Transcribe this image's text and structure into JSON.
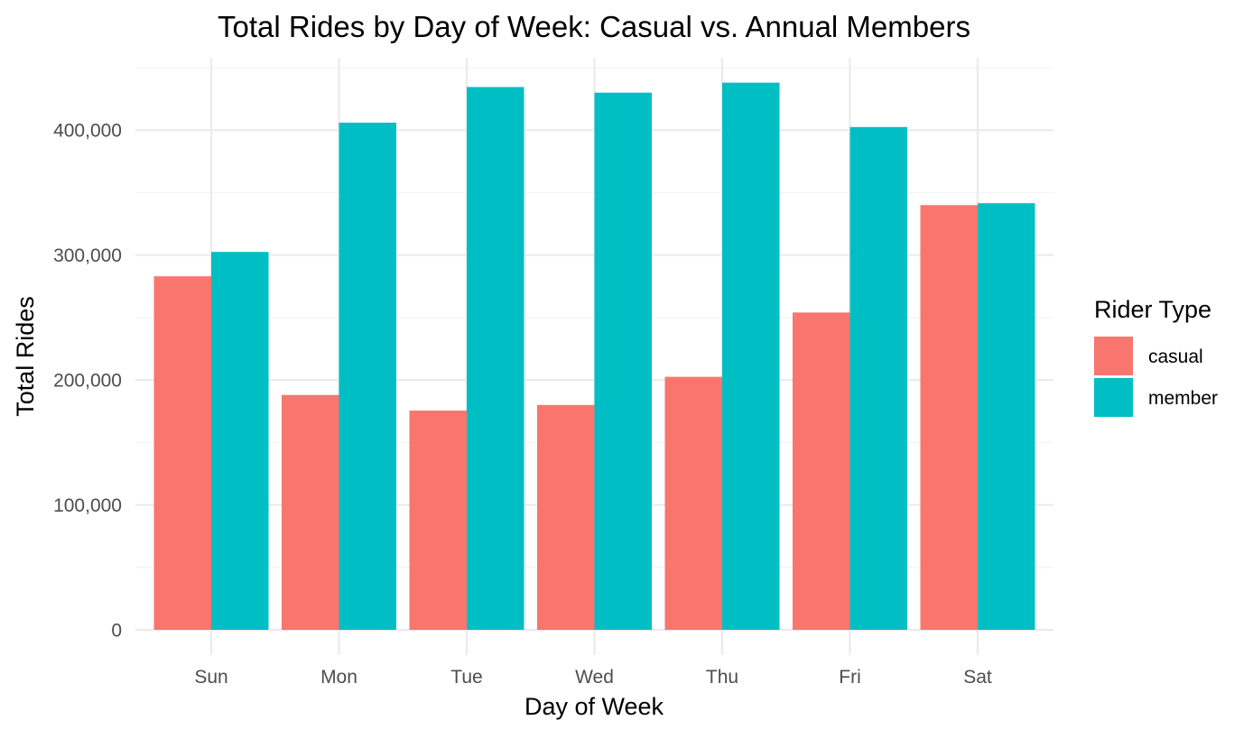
{
  "chart_data": {
    "type": "bar",
    "title": "Total Rides by Day of Week: Casual vs. Annual Members",
    "xlabel": "Day of Week",
    "ylabel": "Total Rides",
    "categories": [
      "Sun",
      "Mon",
      "Tue",
      "Wed",
      "Thu",
      "Fri",
      "Sat"
    ],
    "series": [
      {
        "name": "casual",
        "color": "#F8766D",
        "values": [
          283000,
          188000,
          175500,
          180000,
          202500,
          254000,
          340000
        ]
      },
      {
        "name": "member",
        "color": "#00BFC4",
        "values": [
          302500,
          406000,
          434500,
          430000,
          438000,
          402500,
          341500
        ]
      }
    ],
    "ylim": [
      0,
      450000
    ],
    "yticks": [
      0,
      100000,
      200000,
      300000,
      400000
    ],
    "ytick_labels": [
      "0",
      "100,000",
      "200,000",
      "300,000",
      "400,000"
    ],
    "grid": true,
    "legend": {
      "title": "Rider Type",
      "position": "right"
    }
  }
}
